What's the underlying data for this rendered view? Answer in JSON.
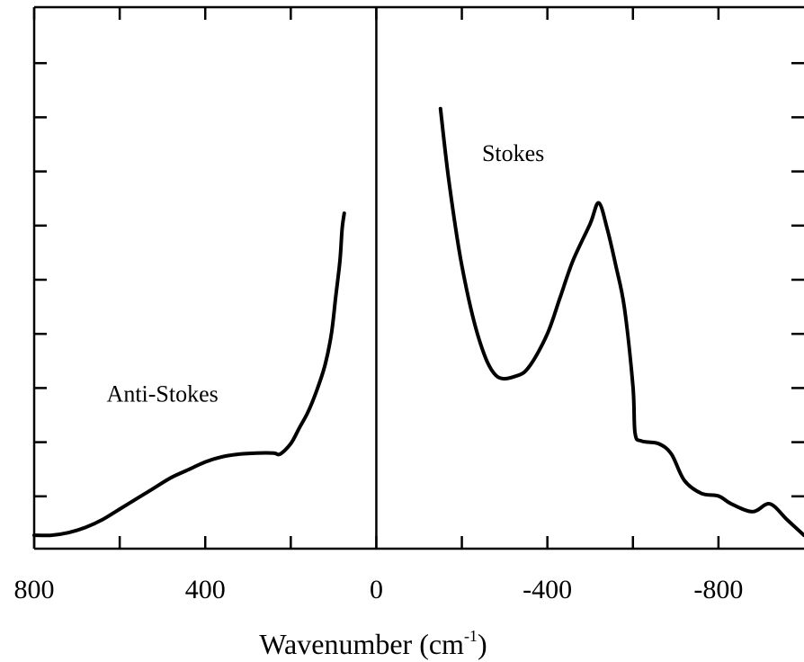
{
  "chart_data": {
    "type": "line",
    "title": "",
    "xlabel": "Wavenumber (cm",
    "xlabel_sup": "-1",
    "xlabel_close": ")",
    "ylabel": "",
    "xlim": [
      800,
      -1000
    ],
    "x_ticks": [
      {
        "value": 800,
        "label": "800"
      },
      {
        "value": 400,
        "label": "400"
      },
      {
        "value": 0,
        "label": "0"
      },
      {
        "value": -400,
        "label": "-400"
      },
      {
        "value": -800,
        "label": "-800"
      }
    ],
    "x_minor_ticks": [
      600,
      200,
      -200,
      -600
    ],
    "y_tick_count": 10,
    "divider_at": 0,
    "grid": false,
    "annotations": [
      {
        "text": "Anti-Stokes",
        "x": 500,
        "y": 0.26
      },
      {
        "text": "Stokes",
        "x": -320,
        "y": 0.72
      }
    ],
    "series": [
      {
        "x": [
          800,
          760,
          720,
          680,
          640,
          600,
          560,
          520,
          480,
          440,
          400,
          360,
          320,
          280,
          240,
          225,
          200,
          180,
          160,
          140,
          120,
          105,
          95,
          85,
          80,
          75
        ],
        "y": [
          0.005,
          0.005,
          0.01,
          0.02,
          0.035,
          0.055,
          0.075,
          0.095,
          0.115,
          0.13,
          0.145,
          0.155,
          0.16,
          0.162,
          0.162,
          0.16,
          0.18,
          0.21,
          0.24,
          0.28,
          0.33,
          0.39,
          0.46,
          0.53,
          0.59,
          0.62
        ]
      },
      {
        "x": [
          -150,
          -170,
          -200,
          -240,
          -280,
          -330,
          -360,
          -400,
          -430,
          -460,
          -500,
          -520,
          -540,
          -560,
          -580,
          -600,
          -605,
          -620,
          -660,
          -690,
          -720,
          -760,
          -800,
          -830,
          -880,
          -920,
          -960,
          -1000
        ],
        "y": [
          0.82,
          0.68,
          0.52,
          0.38,
          0.31,
          0.31,
          0.33,
          0.39,
          0.46,
          0.53,
          0.6,
          0.64,
          0.59,
          0.52,
          0.44,
          0.29,
          0.2,
          0.185,
          0.18,
          0.16,
          0.11,
          0.085,
          0.08,
          0.065,
          0.05,
          0.065,
          0.035,
          0.005
        ]
      }
    ]
  }
}
